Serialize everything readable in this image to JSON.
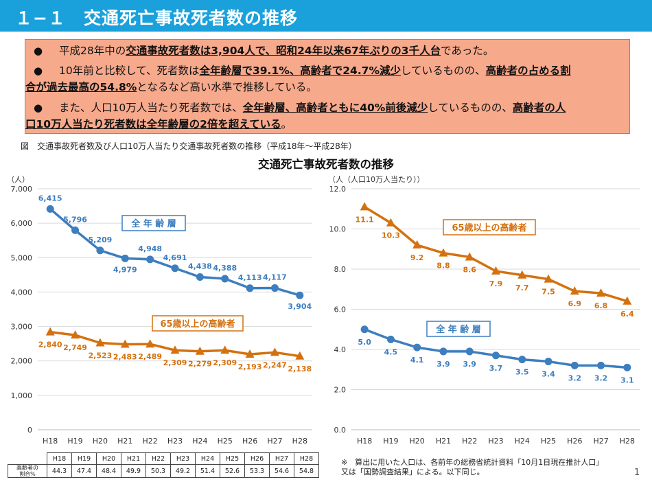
{
  "header": {
    "title": "１−１　交通死亡事故死者数の推移"
  },
  "summary": {
    "bullet": "●",
    "items": [
      {
        "lines": [
          [
            {
              "t": "平成28年中の"
            },
            {
              "t": "交通事故死者数は3,904人で、昭和24年以来67年ぶりの3千人台",
              "b": 1
            },
            {
              "t": "であった。"
            }
          ]
        ]
      },
      {
        "lines": [
          [
            {
              "t": "10年前と比較して、死者数は"
            },
            {
              "t": "全年齢層で39.1%、高齢者で24.7%減少",
              "b": 1
            },
            {
              "t": "しているものの、"
            },
            {
              "t": "高齢者の占める割",
              "b": 1
            }
          ],
          [
            {
              "t": "合が過去最高の54.8%",
              "b": 1
            },
            {
              "t": "となるなど高い水準で推移している。"
            }
          ]
        ]
      },
      {
        "lines": [
          [
            {
              "t": "また、人口10万人当たり死者数では、"
            },
            {
              "t": "全年齢層、高齢者ともに40%前後減少",
              "b": 1
            },
            {
              "t": "しているものの、"
            },
            {
              "t": "高齢者の人",
              "b": 1
            }
          ],
          [
            {
              "t": "口10万人当たり死者数は全年齢層の2倍を超えている",
              "b": 1
            },
            {
              "t": "。"
            }
          ]
        ]
      }
    ]
  },
  "figure_caption": "図　交通事故死者数及び人口10万人当たり交通事故死者数の推移（平成18年〜平成28年）",
  "chart_title": "交通死亡事故死者数の推移",
  "chart_data": [
    {
      "type": "line",
      "ylabel": "（人）",
      "ylim": [
        0,
        7000
      ],
      "yticks": [
        "0",
        "1,000",
        "2,000",
        "3,000",
        "4,000",
        "5,000",
        "6,000",
        "7,000"
      ],
      "grid": true,
      "categories": [
        "H18",
        "H19",
        "H20",
        "H21",
        "H22",
        "H23",
        "H24",
        "H25",
        "H26",
        "H27",
        "H28"
      ],
      "series": [
        {
          "name": "全年齢層",
          "color": "#3d7ebf",
          "marker": "circle",
          "values": [
            6415,
            5796,
            5209,
            4979,
            4948,
            4691,
            4438,
            4388,
            4113,
            4117,
            3904
          ],
          "labels": [
            "6,415",
            "5,796",
            "5,209",
            "4,979",
            "4,948",
            "4,691",
            "4,438",
            "4,388",
            "4,113",
            "4,117",
            "3,904"
          ]
        },
        {
          "name": "65歳以上の高齢者",
          "color": "#d4710f",
          "marker": "triangle",
          "values": [
            2840,
            2749,
            2523,
            2483,
            2489,
            2309,
            2279,
            2309,
            2193,
            2247,
            2138
          ],
          "labels": [
            "2,840",
            "2,749",
            "2,523",
            "2,483",
            "2,489",
            "2,309",
            "2,279",
            "2,309",
            "2,193",
            "2,247",
            "2,138"
          ]
        }
      ]
    },
    {
      "type": "line",
      "ylabel": "（人（人口10万人当たり））",
      "ylim": [
        0,
        12
      ],
      "yticks": [
        "0.0",
        "2.0",
        "4.0",
        "6.0",
        "8.0",
        "10.0",
        "12.0"
      ],
      "grid": true,
      "categories": [
        "H18",
        "H19",
        "H20",
        "H21",
        "H22",
        "H23",
        "H24",
        "H25",
        "H26",
        "H27",
        "H28"
      ],
      "series": [
        {
          "name": "65歳以上の高齢者",
          "color": "#d4710f",
          "marker": "triangle",
          "values": [
            11.1,
            10.3,
            9.2,
            8.8,
            8.6,
            7.9,
            7.7,
            7.5,
            6.9,
            6.8,
            6.4
          ],
          "labels": [
            "11.1",
            "10.3",
            "9.2",
            "8.8",
            "8.6",
            "7.9",
            "7.7",
            "7.5",
            "6.9",
            "6.8",
            "6.4"
          ]
        },
        {
          "name": "全年齢層",
          "color": "#3d7ebf",
          "marker": "circle",
          "values": [
            5.0,
            4.5,
            4.1,
            3.9,
            3.9,
            3.7,
            3.5,
            3.4,
            3.2,
            3.2,
            3.1
          ],
          "labels": [
            "5.0",
            "4.5",
            "4.1",
            "3.9",
            "3.9",
            "3.7",
            "3.5",
            "3.4",
            "3.2",
            "3.2",
            "3.1"
          ]
        }
      ]
    }
  ],
  "legend_labels": {
    "all_ages": "全 年 齢 層",
    "elderly": "65歳以上の高齢者"
  },
  "elderly_share_table": {
    "label_line1": "高齢者の",
    "label_line2": "割合%",
    "years": [
      "H18",
      "H19",
      "H20",
      "H21",
      "H22",
      "H23",
      "H24",
      "H25",
      "H26",
      "H27",
      "H28"
    ],
    "values": [
      "44.3",
      "47.4",
      "48.4",
      "49.9",
      "50.3",
      "49.2",
      "51.4",
      "52.6",
      "53.3",
      "54.6",
      "54.8"
    ]
  },
  "footnote": {
    "line1": "※　算出に用いた人口は、各前年の総務省統計資料「10月1日現在推計人口」",
    "line2": "又は「国勢調査結果」による。以下同じ。"
  },
  "page_number": "1"
}
